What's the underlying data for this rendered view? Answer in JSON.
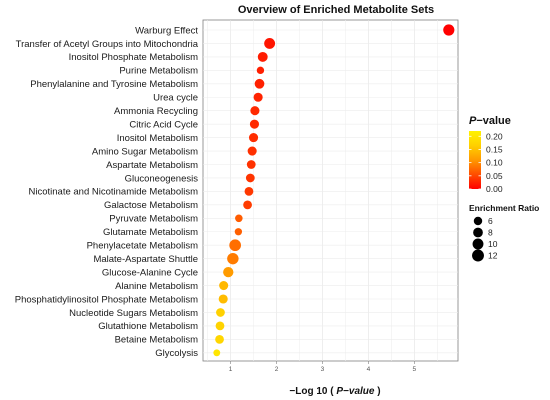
{
  "chart_data": {
    "type": "scatter",
    "title": "Overview of Enriched Metabolite Sets",
    "xlabel": {
      "prefix": "−Log 10 ( ",
      "italic": "P−value",
      "suffix": " )"
    },
    "ylabel": "",
    "xlim": [
      0.4,
      5.95
    ],
    "xticks": [
      1,
      2,
      3,
      4,
      5
    ],
    "grid": true,
    "color_variable": "P-value",
    "size_variable": "Enrichment Ratio",
    "points": [
      {
        "name": "Warburg Effect",
        "x": 5.75,
        "p": 0.0,
        "er": 10.5
      },
      {
        "name": "Transfer of Acetyl Groups into Mitochondria",
        "x": 1.85,
        "p": 0.014,
        "er": 10.0
      },
      {
        "name": "Inositol Phosphate Metabolism",
        "x": 1.7,
        "p": 0.02,
        "er": 8.3
      },
      {
        "name": "Purine Metabolism",
        "x": 1.65,
        "p": 0.022,
        "er": 4.6
      },
      {
        "name": "Phenylalanine and Tyrosine Metabolism",
        "x": 1.63,
        "p": 0.023,
        "er": 8.0
      },
      {
        "name": "Urea cycle",
        "x": 1.6,
        "p": 0.025,
        "er": 7.0
      },
      {
        "name": "Ammonia Recycling",
        "x": 1.53,
        "p": 0.029,
        "er": 7.0
      },
      {
        "name": "Citric Acid Cycle",
        "x": 1.52,
        "p": 0.03,
        "er": 7.0
      },
      {
        "name": "Inositol Metabolism",
        "x": 1.5,
        "p": 0.032,
        "er": 7.0
      },
      {
        "name": "Amino Sugar Metabolism",
        "x": 1.47,
        "p": 0.034,
        "er": 7.0
      },
      {
        "name": "Aspartate Metabolism",
        "x": 1.45,
        "p": 0.035,
        "er": 6.5
      },
      {
        "name": "Gluconeogenesis",
        "x": 1.43,
        "p": 0.037,
        "er": 6.5
      },
      {
        "name": "Nicotinate and Nicotinamide Metabolism",
        "x": 1.4,
        "p": 0.04,
        "er": 6.5
      },
      {
        "name": "Galactose Metabolism",
        "x": 1.37,
        "p": 0.043,
        "er": 6.5
      },
      {
        "name": "Pyruvate Metabolism",
        "x": 1.18,
        "p": 0.066,
        "er": 4.8
      },
      {
        "name": "Glutamate Metabolism",
        "x": 1.17,
        "p": 0.068,
        "er": 4.5
      },
      {
        "name": "Phenylacetate Metabolism",
        "x": 1.1,
        "p": 0.079,
        "er": 11.5
      },
      {
        "name": "Malate-Aspartate Shuttle",
        "x": 1.05,
        "p": 0.089,
        "er": 11.0
      },
      {
        "name": "Glucose-Alanine Cycle",
        "x": 0.95,
        "p": 0.112,
        "er": 9.0
      },
      {
        "name": "Alanine Metabolism",
        "x": 0.85,
        "p": 0.141,
        "er": 7.0
      },
      {
        "name": "Phosphatidylinositol Phosphate Metabolism",
        "x": 0.84,
        "p": 0.145,
        "er": 7.0
      },
      {
        "name": "Nucleotide Sugars Metabolism",
        "x": 0.78,
        "p": 0.166,
        "er": 6.5
      },
      {
        "name": "Glutathione Metabolism",
        "x": 0.77,
        "p": 0.17,
        "er": 6.5
      },
      {
        "name": "Betaine Metabolism",
        "x": 0.76,
        "p": 0.174,
        "er": 6.5
      },
      {
        "name": "Glycolysis",
        "x": 0.7,
        "p": 0.2,
        "er": 4.0
      }
    ],
    "color_legend": {
      "title": {
        "prefix": "",
        "italic": "P",
        "suffix": "−value"
      },
      "ticks": [
        "0.20",
        "0.15",
        "0.10",
        "0.05",
        "0.00"
      ],
      "tick_values": [
        0.2,
        0.15,
        0.1,
        0.05,
        0.0
      ],
      "range": [
        0,
        0.22
      ],
      "colors": [
        "#ff0000",
        "#ff4d00",
        "#ff9900",
        "#ffd000",
        "#fff200"
      ]
    },
    "size_legend": {
      "title": "Enrichment Ratio",
      "entries": [
        {
          "label": "6",
          "value": 6
        },
        {
          "label": "8",
          "value": 8
        },
        {
          "label": "10",
          "value": 10
        },
        {
          "label": "12",
          "value": 12
        }
      ]
    }
  }
}
